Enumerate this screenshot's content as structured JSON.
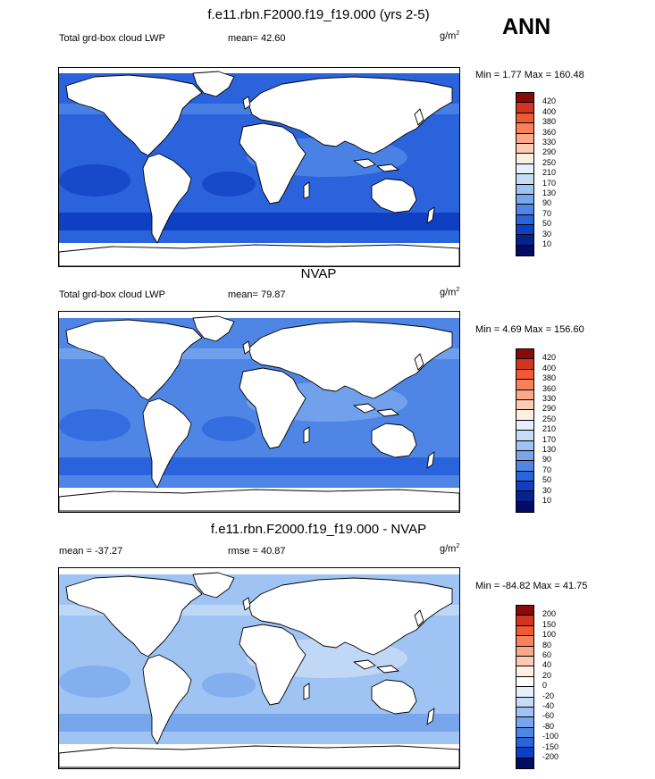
{
  "season": "ANN",
  "panels": [
    {
      "title": "f.e11.rbn.F2000.f19_f19.000 (yrs 2-5)",
      "left_label": "Total grd-box cloud LWP",
      "center_label": "mean=  42.60",
      "units_base": "g/m",
      "units_exp": "2",
      "minmax": "Min =   1.77 Max = 160.48",
      "colorbar": {
        "labels": [
          "420",
          "400",
          "380",
          "360",
          "330",
          "290",
          "250",
          "210",
          "170",
          "130",
          "90",
          "70",
          "50",
          "30",
          "10"
        ],
        "colors": [
          "#8a0a0a",
          "#d1341f",
          "#ee5a36",
          "#f7815a",
          "#fba88a",
          "#fdcbb4",
          "#fdeee2",
          "#e5f0fb",
          "#c5dcf7",
          "#9fc3f2",
          "#77a6ec",
          "#4f86e6",
          "#2a63db",
          "#0f3fc2",
          "#06228f",
          "#020c63"
        ]
      },
      "ocean_color": "#2a63db",
      "band_color": "#0f3fc2",
      "light_color": "#4f86e6"
    },
    {
      "title": "NVAP",
      "left_label": "Total grd-box cloud LWP",
      "center_label": "mean=  79.87",
      "units_base": "g/m",
      "units_exp": "2",
      "minmax": "Min =   4.69 Max = 156.60",
      "colorbar": {
        "labels": [
          "420",
          "400",
          "380",
          "360",
          "330",
          "290",
          "250",
          "210",
          "170",
          "130",
          "90",
          "70",
          "50",
          "30",
          "10"
        ],
        "colors": [
          "#8a0a0a",
          "#d1341f",
          "#ee5a36",
          "#f7815a",
          "#fba88a",
          "#fdcbb4",
          "#fdeee2",
          "#e5f0fb",
          "#c5dcf7",
          "#9fc3f2",
          "#77a6ec",
          "#4f86e6",
          "#2a63db",
          "#0f3fc2",
          "#06228f",
          "#020c63"
        ]
      },
      "ocean_color": "#4f86e6",
      "band_color": "#2a63db",
      "light_color": "#77a6ec"
    },
    {
      "title": "f.e11.rbn.F2000.f19_f19.000 - NVAP",
      "left_label": "mean = -37.27",
      "center_label": "rmse =  40.87",
      "units_base": "g/m",
      "units_exp": "2",
      "minmax": "Min = -84.82 Max =  41.75",
      "colorbar": {
        "labels": [
          "200",
          "150",
          "100",
          "80",
          "60",
          "40",
          "20",
          "0",
          "-20",
          "-40",
          "-60",
          "-80",
          "-100",
          "-150",
          "-200"
        ],
        "colors": [
          "#8a0a0a",
          "#d1341f",
          "#ee5a36",
          "#f7815a",
          "#fba88a",
          "#fdcbb4",
          "#fdeee2",
          "#ffffff",
          "#e5f0fb",
          "#c5dcf7",
          "#9fc3f2",
          "#77a6ec",
          "#4f86e6",
          "#2a63db",
          "#0f3fc2",
          "#020c63"
        ]
      },
      "ocean_color": "#9fc3f2",
      "band_color": "#77a6ec",
      "light_color": "#c5dcf7"
    }
  ]
}
